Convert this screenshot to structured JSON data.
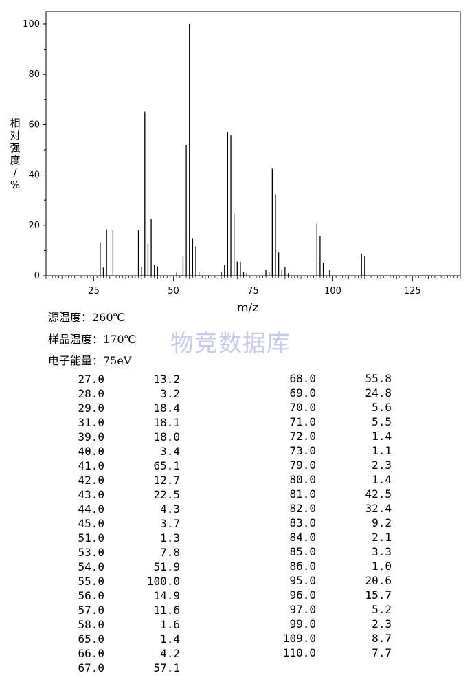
{
  "chart_data": {
    "type": "bar",
    "xlabel": "m/z",
    "ylabel": "相对强度/%",
    "xlim": [
      10,
      140
    ],
    "ylim": [
      0,
      100
    ],
    "xticks": [
      25,
      50,
      75,
      100,
      125
    ],
    "yticks": [
      0,
      20,
      40,
      60,
      80,
      100
    ],
    "peaks": [
      {
        "mz": 27.0,
        "abundance": 13.2
      },
      {
        "mz": 28.0,
        "abundance": 3.2
      },
      {
        "mz": 29.0,
        "abundance": 18.4
      },
      {
        "mz": 31.0,
        "abundance": 18.1
      },
      {
        "mz": 39.0,
        "abundance": 18.0
      },
      {
        "mz": 40.0,
        "abundance": 3.4
      },
      {
        "mz": 41.0,
        "abundance": 65.1
      },
      {
        "mz": 42.0,
        "abundance": 12.7
      },
      {
        "mz": 43.0,
        "abundance": 22.5
      },
      {
        "mz": 44.0,
        "abundance": 4.3
      },
      {
        "mz": 45.0,
        "abundance": 3.7
      },
      {
        "mz": 51.0,
        "abundance": 1.3
      },
      {
        "mz": 53.0,
        "abundance": 7.8
      },
      {
        "mz": 54.0,
        "abundance": 51.9
      },
      {
        "mz": 55.0,
        "abundance": 100.0
      },
      {
        "mz": 56.0,
        "abundance": 14.9
      },
      {
        "mz": 57.0,
        "abundance": 11.6
      },
      {
        "mz": 58.0,
        "abundance": 1.6
      },
      {
        "mz": 65.0,
        "abundance": 1.4
      },
      {
        "mz": 66.0,
        "abundance": 4.2
      },
      {
        "mz": 67.0,
        "abundance": 57.1
      },
      {
        "mz": 68.0,
        "abundance": 55.8
      },
      {
        "mz": 69.0,
        "abundance": 24.8
      },
      {
        "mz": 70.0,
        "abundance": 5.6
      },
      {
        "mz": 71.0,
        "abundance": 5.5
      },
      {
        "mz": 72.0,
        "abundance": 1.4
      },
      {
        "mz": 73.0,
        "abundance": 1.1
      },
      {
        "mz": 79.0,
        "abundance": 2.3
      },
      {
        "mz": 80.0,
        "abundance": 1.4
      },
      {
        "mz": 81.0,
        "abundance": 42.5
      },
      {
        "mz": 82.0,
        "abundance": 32.4
      },
      {
        "mz": 83.0,
        "abundance": 9.2
      },
      {
        "mz": 84.0,
        "abundance": 2.1
      },
      {
        "mz": 85.0,
        "abundance": 3.3
      },
      {
        "mz": 86.0,
        "abundance": 1.0
      },
      {
        "mz": 95.0,
        "abundance": 20.6
      },
      {
        "mz": 96.0,
        "abundance": 15.7
      },
      {
        "mz": 97.0,
        "abundance": 5.2
      },
      {
        "mz": 99.0,
        "abundance": 2.3
      },
      {
        "mz": 109.0,
        "abundance": 8.7
      },
      {
        "mz": 110.0,
        "abundance": 7.7
      }
    ]
  },
  "conditions": {
    "source_temp": "源温度：260℃",
    "sample_temp": "样品温度：170℃",
    "electron_energy": "电子能量：75eV"
  },
  "watermark": "物竞数据库",
  "table": {
    "left": [
      [
        "27.0",
        "13.2"
      ],
      [
        "28.0",
        "3.2"
      ],
      [
        "29.0",
        "18.4"
      ],
      [
        "31.0",
        "18.1"
      ],
      [
        "39.0",
        "18.0"
      ],
      [
        "40.0",
        "3.4"
      ],
      [
        "41.0",
        "65.1"
      ],
      [
        "42.0",
        "12.7"
      ],
      [
        "43.0",
        "22.5"
      ],
      [
        "44.0",
        "4.3"
      ],
      [
        "45.0",
        "3.7"
      ],
      [
        "51.0",
        "1.3"
      ],
      [
        "53.0",
        "7.8"
      ],
      [
        "54.0",
        "51.9"
      ],
      [
        "55.0",
        "100.0"
      ],
      [
        "56.0",
        "14.9"
      ],
      [
        "57.0",
        "11.6"
      ],
      [
        "58.0",
        "1.6"
      ],
      [
        "65.0",
        "1.4"
      ],
      [
        "66.0",
        "4.2"
      ],
      [
        "67.0",
        "57.1"
      ]
    ],
    "right": [
      [
        "68.0",
        "55.8"
      ],
      [
        "69.0",
        "24.8"
      ],
      [
        "70.0",
        "5.6"
      ],
      [
        "71.0",
        "5.5"
      ],
      [
        "72.0",
        "1.4"
      ],
      [
        "73.0",
        "1.1"
      ],
      [
        "79.0",
        "2.3"
      ],
      [
        "80.0",
        "1.4"
      ],
      [
        "81.0",
        "42.5"
      ],
      [
        "82.0",
        "32.4"
      ],
      [
        "83.0",
        "9.2"
      ],
      [
        "84.0",
        "2.1"
      ],
      [
        "85.0",
        "3.3"
      ],
      [
        "86.0",
        "1.0"
      ],
      [
        "95.0",
        "20.6"
      ],
      [
        "96.0",
        "15.7"
      ],
      [
        "97.0",
        "5.2"
      ],
      [
        "99.0",
        "2.3"
      ],
      [
        "109.0",
        "8.7"
      ],
      [
        "110.0",
        "7.7"
      ]
    ]
  }
}
